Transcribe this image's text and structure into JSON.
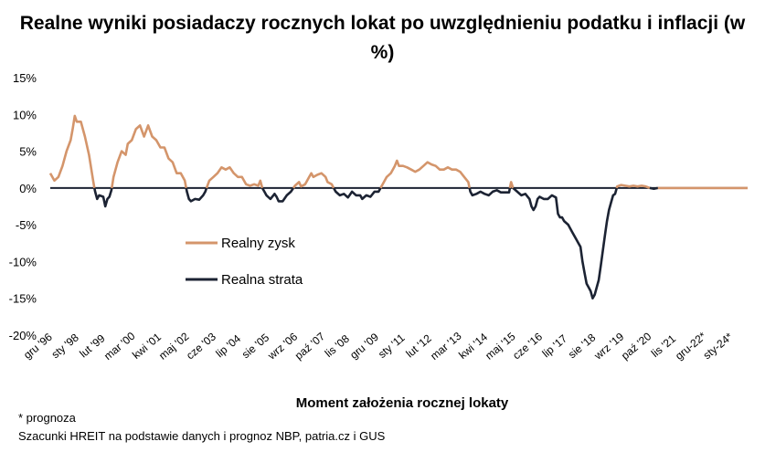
{
  "chart_data": {
    "type": "line",
    "title": "Realne wyniki posiadaczy rocznych lokat po uwzględnieniu podatku i inflacji (w %)",
    "xlabel": "Moment założenia rocznej lokaty",
    "ylabel": "",
    "ylim": [
      -20,
      15
    ],
    "yticks": [
      15,
      10,
      5,
      0,
      -5,
      -10,
      -15,
      -20
    ],
    "ytick_labels": [
      "15%",
      "10%",
      "5%",
      "0%",
      "-5%",
      "-10%",
      "-15%",
      "-20%"
    ],
    "xtick_labels": [
      "gru '96",
      "sty '98",
      "lut '99",
      "mar '00",
      "kwi '01",
      "maj '02",
      "cze '03",
      "lip '04",
      "sie '05",
      "wrz '06",
      "paź '07",
      "lis '08",
      "gru '09",
      "sty '11",
      "lut '12",
      "mar '13",
      "kwi '14",
      "maj '15",
      "cze '16",
      "lip '17",
      "sie '18",
      "wrz '19",
      "paź '20",
      "lis '21",
      "gru-22*",
      "sty-24*"
    ],
    "x_start": "1996-12",
    "x_end": "2025-06",
    "legend_position": "center-left",
    "grid": false,
    "series": [
      {
        "name": "Realny zysk",
        "color": "#D4956B"
      },
      {
        "name": "Realna strata",
        "color": "#1C2333"
      }
    ],
    "values": [
      [
        "1996-12",
        2.0
      ],
      [
        "1997-02",
        1.0
      ],
      [
        "1997-04",
        1.5
      ],
      [
        "1997-06",
        3.0
      ],
      [
        "1997-08",
        5.0
      ],
      [
        "1997-10",
        6.5
      ],
      [
        "1997-11",
        8.0
      ],
      [
        "1997-12",
        9.8
      ],
      [
        "1998-01",
        9.0
      ],
      [
        "1998-03",
        9.0
      ],
      [
        "1998-05",
        7.0
      ],
      [
        "1998-07",
        4.5
      ],
      [
        "1998-09",
        1.0
      ],
      [
        "1998-10",
        -0.5
      ],
      [
        "1998-11",
        -1.5
      ],
      [
        "1998-12",
        -1.0
      ],
      [
        "1999-02",
        -1.2
      ],
      [
        "1999-03",
        -2.5
      ],
      [
        "1999-04",
        -1.5
      ],
      [
        "1999-05",
        -1.2
      ],
      [
        "1999-06",
        -0.3
      ],
      [
        "1999-07",
        1.5
      ],
      [
        "1999-09",
        3.5
      ],
      [
        "1999-11",
        5.0
      ],
      [
        "2000-01",
        4.5
      ],
      [
        "2000-02",
        6.0
      ],
      [
        "2000-04",
        6.5
      ],
      [
        "2000-06",
        8.0
      ],
      [
        "2000-08",
        8.5
      ],
      [
        "2000-10",
        7.0
      ],
      [
        "2000-12",
        8.5
      ],
      [
        "2001-02",
        7.0
      ],
      [
        "2001-04",
        6.5
      ],
      [
        "2001-06",
        5.5
      ],
      [
        "2001-08",
        5.5
      ],
      [
        "2001-10",
        4.0
      ],
      [
        "2001-12",
        3.5
      ],
      [
        "2002-02",
        2.0
      ],
      [
        "2002-04",
        2.0
      ],
      [
        "2002-06",
        1.0
      ],
      [
        "2002-07",
        -0.5
      ],
      [
        "2002-08",
        -1.5
      ],
      [
        "2002-09",
        -1.8
      ],
      [
        "2002-11",
        -1.5
      ],
      [
        "2003-01",
        -1.6
      ],
      [
        "2003-03",
        -1.0
      ],
      [
        "2003-04",
        -0.5
      ],
      [
        "2003-06",
        1.0
      ],
      [
        "2003-08",
        1.5
      ],
      [
        "2003-10",
        2.0
      ],
      [
        "2003-12",
        2.8
      ],
      [
        "2004-02",
        2.5
      ],
      [
        "2004-04",
        2.8
      ],
      [
        "2004-06",
        2.0
      ],
      [
        "2004-08",
        1.5
      ],
      [
        "2004-10",
        1.5
      ],
      [
        "2004-12",
        0.5
      ],
      [
        "2005-02",
        0.3
      ],
      [
        "2005-04",
        0.5
      ],
      [
        "2005-06",
        0.3
      ],
      [
        "2005-07",
        1.0
      ],
      [
        "2005-08",
        0.0
      ],
      [
        "2005-09",
        -0.5
      ],
      [
        "2005-10",
        -1.0
      ],
      [
        "2005-12",
        -1.5
      ],
      [
        "2006-02",
        -0.8
      ],
      [
        "2006-03",
        -1.2
      ],
      [
        "2006-04",
        -1.8
      ],
      [
        "2006-06",
        -1.8
      ],
      [
        "2006-08",
        -1.0
      ],
      [
        "2006-10",
        -0.5
      ],
      [
        "2006-12",
        0.3
      ],
      [
        "2007-02",
        0.8
      ],
      [
        "2007-03",
        0.2
      ],
      [
        "2007-05",
        0.5
      ],
      [
        "2007-07",
        1.5
      ],
      [
        "2007-08",
        2.0
      ],
      [
        "2007-09",
        1.5
      ],
      [
        "2007-11",
        1.8
      ],
      [
        "2008-01",
        2.0
      ],
      [
        "2008-03",
        1.5
      ],
      [
        "2008-04",
        0.8
      ],
      [
        "2008-06",
        0.5
      ],
      [
        "2008-08",
        -0.5
      ],
      [
        "2008-10",
        -1.0
      ],
      [
        "2008-12",
        -0.8
      ],
      [
        "2009-02",
        -1.3
      ],
      [
        "2009-04",
        -0.5
      ],
      [
        "2009-06",
        -1.0
      ],
      [
        "2009-08",
        -1.0
      ],
      [
        "2009-09",
        -1.5
      ],
      [
        "2009-11",
        -1.0
      ],
      [
        "2010-01",
        -1.2
      ],
      [
        "2010-03",
        -0.5
      ],
      [
        "2010-05",
        -0.5
      ],
      [
        "2010-07",
        0.5
      ],
      [
        "2010-09",
        1.5
      ],
      [
        "2010-11",
        2.0
      ],
      [
        "2011-01",
        3.0
      ],
      [
        "2011-02",
        3.7
      ],
      [
        "2011-03",
        3.0
      ],
      [
        "2011-05",
        3.0
      ],
      [
        "2011-07",
        2.8
      ],
      [
        "2011-09",
        2.5
      ],
      [
        "2011-11",
        2.2
      ],
      [
        "2012-01",
        2.5
      ],
      [
        "2012-03",
        3.0
      ],
      [
        "2012-05",
        3.5
      ],
      [
        "2012-07",
        3.2
      ],
      [
        "2012-09",
        3.0
      ],
      [
        "2012-11",
        2.5
      ],
      [
        "2013-01",
        2.5
      ],
      [
        "2013-03",
        2.8
      ],
      [
        "2013-05",
        2.5
      ],
      [
        "2013-07",
        2.5
      ],
      [
        "2013-09",
        2.2
      ],
      [
        "2013-11",
        1.5
      ],
      [
        "2014-01",
        0.8
      ],
      [
        "2014-02",
        -0.5
      ],
      [
        "2014-03",
        -1.0
      ],
      [
        "2014-05",
        -0.8
      ],
      [
        "2014-07",
        -0.5
      ],
      [
        "2014-09",
        -0.8
      ],
      [
        "2014-11",
        -1.0
      ],
      [
        "2015-01",
        -0.5
      ],
      [
        "2015-03",
        -0.3
      ],
      [
        "2015-05",
        -0.6
      ],
      [
        "2015-07",
        -0.6
      ],
      [
        "2015-09",
        -0.6
      ],
      [
        "2015-10",
        0.8
      ],
      [
        "2015-11",
        0.0
      ],
      [
        "2016-01",
        -0.5
      ],
      [
        "2016-03",
        -1.0
      ],
      [
        "2016-05",
        -0.8
      ],
      [
        "2016-07",
        -1.5
      ],
      [
        "2016-08",
        -2.5
      ],
      [
        "2016-09",
        -3.0
      ],
      [
        "2016-10",
        -2.5
      ],
      [
        "2016-11",
        -1.5
      ],
      [
        "2016-12",
        -1.2
      ],
      [
        "2017-02",
        -1.5
      ],
      [
        "2017-04",
        -1.5
      ],
      [
        "2017-06",
        -1.0
      ],
      [
        "2017-08",
        -1.3
      ],
      [
        "2017-09",
        -3.5
      ],
      [
        "2017-10",
        -4.0
      ],
      [
        "2017-11",
        -4.0
      ],
      [
        "2017-12",
        -4.5
      ],
      [
        "2018-02",
        -5.0
      ],
      [
        "2018-04",
        -6.0
      ],
      [
        "2018-06",
        -7.0
      ],
      [
        "2018-07",
        -7.5
      ],
      [
        "2018-08",
        -8.0
      ],
      [
        "2018-09",
        -10.0
      ],
      [
        "2018-10",
        -11.5
      ],
      [
        "2018-11",
        -13.0
      ],
      [
        "2018-12",
        -13.5
      ],
      [
        "2019-01",
        -14.0
      ],
      [
        "2019-02",
        -15.0
      ],
      [
        "2019-03",
        -14.5
      ],
      [
        "2019-04",
        -13.5
      ],
      [
        "2019-05",
        -12.5
      ],
      [
        "2019-06",
        -10.5
      ],
      [
        "2019-07",
        -8.5
      ],
      [
        "2019-08",
        -6.5
      ],
      [
        "2019-09",
        -4.5
      ],
      [
        "2019-10",
        -3.0
      ],
      [
        "2019-11",
        -2.0
      ],
      [
        "2019-12",
        -1.0
      ],
      [
        "2020-01",
        -0.8
      ],
      [
        "2020-02",
        0.2
      ],
      [
        "2020-03",
        0.3
      ],
      [
        "2020-04",
        0.4
      ],
      [
        "2020-06",
        0.3
      ],
      [
        "2020-08",
        0.2
      ],
      [
        "2020-10",
        0.3
      ],
      [
        "2020-12",
        0.2
      ],
      [
        "2021-02",
        0.3
      ],
      [
        "2021-04",
        0.2
      ],
      [
        "2021-06",
        0.0
      ],
      [
        "2021-08",
        -0.1
      ],
      [
        "2021-10",
        0.0
      ],
      [
        "2021-12",
        0.0
      ],
      [
        "2022-02",
        0.0
      ],
      [
        "2022-04",
        0.0
      ],
      [
        "2022-06",
        0.0
      ],
      [
        "2022-08",
        0.0
      ],
      [
        "2022-10",
        0.0
      ],
      [
        "2022-12",
        0.0
      ],
      [
        "2023-02",
        0.0
      ],
      [
        "2023-04",
        0.0
      ],
      [
        "2023-06",
        0.0
      ],
      [
        "2023-08",
        0.0
      ],
      [
        "2023-10",
        0.0
      ],
      [
        "2023-12",
        0.0
      ],
      [
        "2024-02",
        0.0
      ],
      [
        "2024-04",
        0.0
      ],
      [
        "2024-06",
        0.0
      ],
      [
        "2024-08",
        0.0
      ],
      [
        "2024-10",
        0.0
      ],
      [
        "2024-12",
        0.0
      ],
      [
        "2025-02",
        0.0
      ],
      [
        "2025-04",
        0.0
      ],
      [
        "2025-06",
        0.0
      ]
    ]
  },
  "legend": {
    "gain_label": "Realny zysk",
    "loss_label": "Realna strata"
  },
  "footnote": "* prognoza",
  "source": "Szacunki HREIT na podstawie danych i prognoz NBP,  patria.cz  i GUS"
}
